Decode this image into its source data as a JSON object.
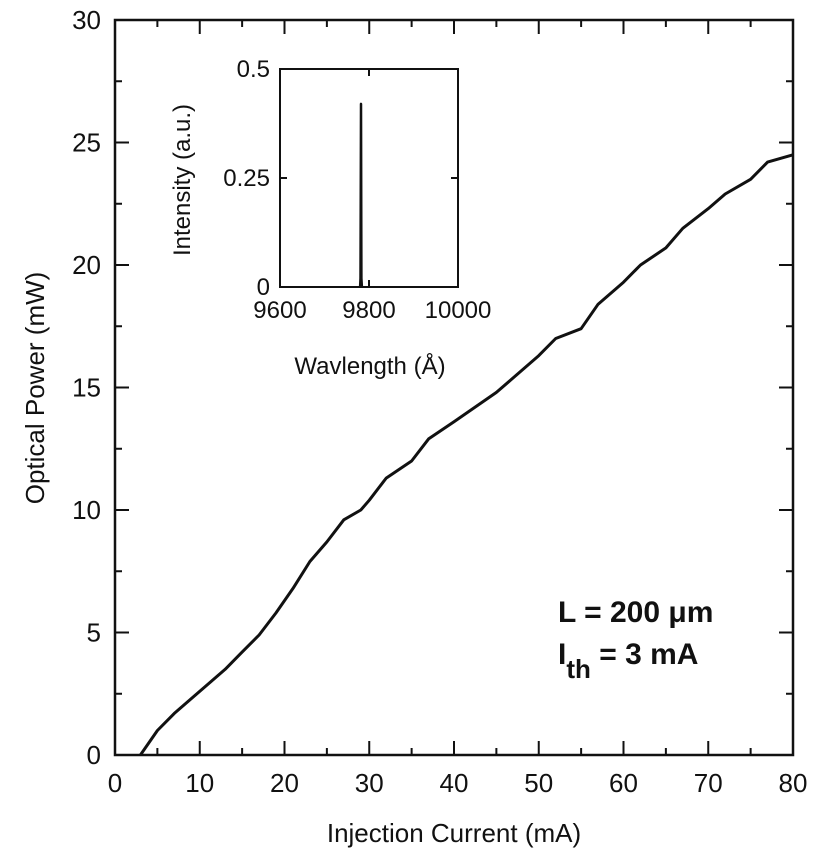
{
  "chart_data": [
    {
      "type": "line",
      "xlabel": "Injection Current (mA)",
      "ylabel": "Optical Power (mW)",
      "xlim": [
        0,
        80
      ],
      "ylim": [
        0,
        30
      ],
      "x_ticks": [
        "0",
        "10",
        "20",
        "30",
        "40",
        "50",
        "60",
        "70",
        "80"
      ],
      "y_ticks": [
        "0",
        "5",
        "10",
        "15",
        "20",
        "25",
        "30"
      ],
      "grid": false,
      "series": [
        {
          "x": [
            3,
            5,
            7,
            9,
            11,
            13,
            15,
            17,
            19,
            21,
            23,
            25,
            27,
            29,
            30,
            32,
            35,
            37,
            40,
            45,
            50,
            52,
            55,
            57,
            60,
            62,
            65,
            67,
            70,
            72,
            75,
            77,
            80
          ],
          "y": [
            0,
            1.0,
            1.7,
            2.3,
            2.9,
            3.5,
            4.2,
            4.9,
            5.8,
            6.8,
            7.9,
            8.7,
            9.6,
            10.0,
            10.4,
            11.3,
            12.0,
            12.9,
            13.6,
            14.8,
            16.3,
            17.0,
            17.4,
            18.4,
            19.3,
            20.0,
            20.7,
            21.5,
            22.3,
            22.9,
            23.5,
            24.2,
            24.5
          ]
        }
      ],
      "annotations": {
        "line1": "L = 200 μm",
        "line2_main": "I",
        "line2_sub": "th",
        "line2_rest": " = 3 mA"
      }
    },
    {
      "type": "line",
      "xlabel": "Wavlength (Å)",
      "ylabel": "Intensity (a.u.)",
      "xlim": [
        9600,
        10000
      ],
      "ylim": [
        0,
        0.5
      ],
      "x_ticks": [
        "9600",
        "9800",
        "10000"
      ],
      "y_ticks": [
        "0",
        "0.25",
        "0.5"
      ],
      "grid": false,
      "series": [
        {
          "x": [
            9780,
            9781,
            9782,
            9783,
            9784
          ],
          "y": [
            0,
            0.02,
            0.42,
            0.02,
            0
          ]
        }
      ]
    }
  ]
}
